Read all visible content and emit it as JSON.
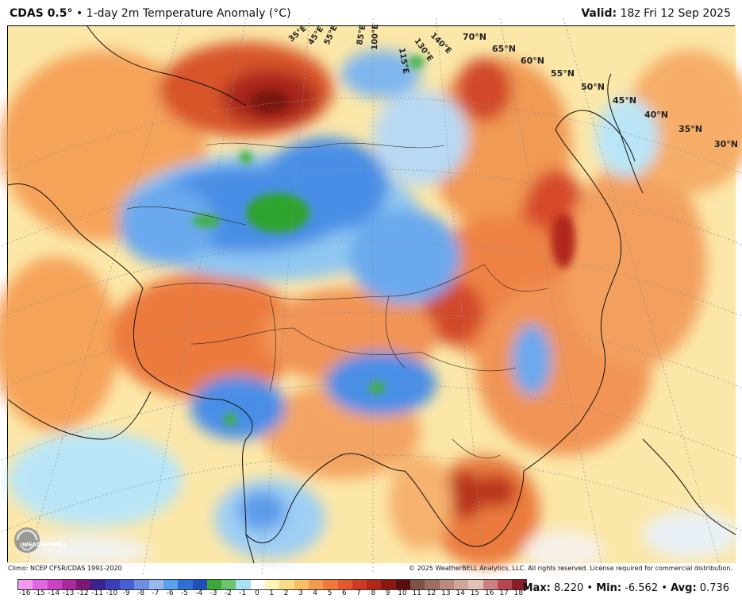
{
  "header": {
    "model": "CDAS 0.5",
    "degree": "°",
    "bullet": "•",
    "product": "1-day 2m Temperature Anomaly (",
    "unit": "°C",
    "close": ")",
    "valid_label": "Valid:",
    "valid_value": "18z Fri 12 Sep 2025"
  },
  "map": {
    "latitude_labels": [
      "70°N",
      "65°N",
      "60°N",
      "55°N",
      "50°N",
      "45°N",
      "40°N",
      "35°N",
      "30°N"
    ],
    "longitude_labels": [
      "35°E",
      "45°E",
      "55°E",
      "85°E",
      "100°E",
      "115°E",
      "130°E",
      "140°E"
    ]
  },
  "logo": {
    "brand": "WEATHERBELL",
    "sub": "Analytics LLC"
  },
  "footer": {
    "climatology": "Climo: NCEP CFSR/CDAS 1991-2020",
    "copyright": "© 2025 WeatherBELL Analytics, LLC. All rights reserved. License required for commercial distribution.",
    "colorbar_ticks": [
      "-16",
      "-15",
      "-14",
      "-13",
      "-12",
      "-11",
      "-10",
      "-9",
      "-8",
      "-7",
      "-6",
      "-5",
      "-4",
      "-3",
      "-2",
      "-1",
      "0",
      "1",
      "2",
      "3",
      "4",
      "5",
      "6",
      "7",
      "8",
      "9",
      "10",
      "11",
      "12",
      "13",
      "14",
      "15",
      "16",
      "17",
      "18"
    ],
    "colorbar_colors": [
      "#f39bf0",
      "#e266de",
      "#cc3fc6",
      "#a82aa0",
      "#7b1777",
      "#3a2391",
      "#3b3cb8",
      "#4560d4",
      "#6a8fe4",
      "#98b8f0",
      "#5aa0f0",
      "#2e6fd8",
      "#1e4fbd",
      "#3aa83a",
      "#6cc46c",
      "#a8e0f5",
      "#ffffff",
      "#fdf4b8",
      "#fbdc86",
      "#f9bd64",
      "#f5994a",
      "#ef7a3a",
      "#e5572c",
      "#cf3b22",
      "#b3271a",
      "#8a1712",
      "#5a0d0a",
      "#7d5345",
      "#9d6e60",
      "#b98a7d",
      "#d1a69a",
      "#e3c1b7",
      "#d08085",
      "#b8454d",
      "#8c1c25"
    ],
    "max_label": "Max:",
    "max_value": "8.220",
    "min_label": "Min:",
    "min_value": "-6.562",
    "avg_label": "Avg:",
    "avg_value": "0.736",
    "bullet": "•"
  }
}
